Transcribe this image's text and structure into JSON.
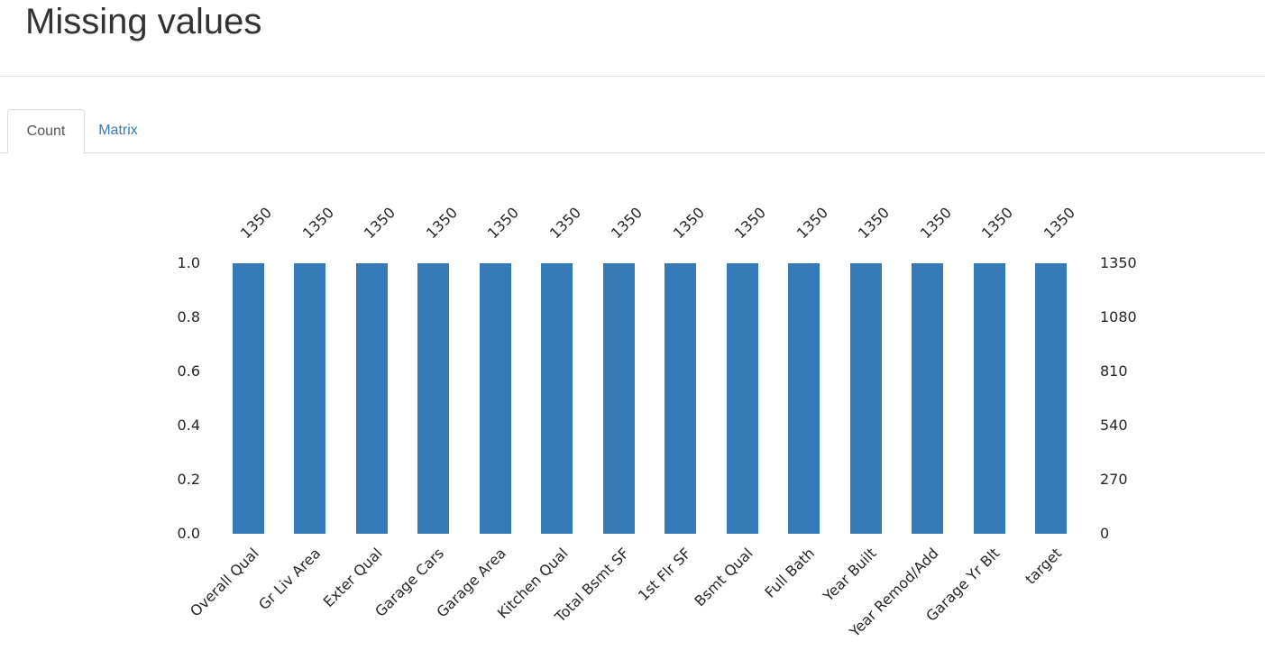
{
  "page": {
    "title": "Missing values"
  },
  "tabs": {
    "count": "Count",
    "matrix": "Matrix"
  },
  "colors": {
    "bar": "#337ab7",
    "link": "#337ab7",
    "tab_active_text": "#555555",
    "tab_border": "#dddddd",
    "chart_text": "#262626",
    "title_text": "#333333"
  },
  "chart_data": {
    "type": "bar",
    "title": "",
    "xlabel": "",
    "ylabel": "",
    "categories": [
      "Overall Qual",
      "Gr Liv Area",
      "Exter Qual",
      "Garage Cars",
      "Garage Area",
      "Kitchen Qual",
      "Total Bsmt SF",
      "1st Flr SF",
      "Bsmt Qual",
      "Full Bath",
      "Year Built",
      "Year Remod/Add",
      "Garage Yr Blt",
      "target"
    ],
    "values": [
      1350,
      1350,
      1350,
      1350,
      1350,
      1350,
      1350,
      1350,
      1350,
      1350,
      1350,
      1350,
      1350,
      1350
    ],
    "proportions": [
      1.0,
      1.0,
      1.0,
      1.0,
      1.0,
      1.0,
      1.0,
      1.0,
      1.0,
      1.0,
      1.0,
      1.0,
      1.0,
      1.0
    ],
    "bar_labels": [
      "1350",
      "1350",
      "1350",
      "1350",
      "1350",
      "1350",
      "1350",
      "1350",
      "1350",
      "1350",
      "1350",
      "1350",
      "1350",
      "1350"
    ],
    "left_axis_ticks": [
      "1.0",
      "0.8",
      "0.6",
      "0.4",
      "0.2",
      "0.0"
    ],
    "right_axis_ticks": [
      "1350",
      "1080",
      "810",
      "540",
      "270",
      "0"
    ],
    "ylim_left": [
      0.0,
      1.0
    ],
    "ylim_right": [
      0,
      1350
    ],
    "grid": false,
    "legend": false,
    "label_rotation_deg": 45,
    "bar_color": "#337ab7"
  }
}
